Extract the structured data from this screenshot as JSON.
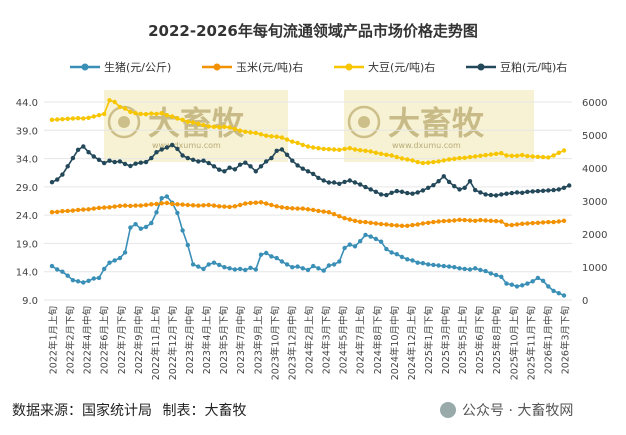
{
  "chart_data": {
    "type": "line",
    "title": "2022-2026年每旬流通领域产品市场价格走势图",
    "watermark": "大畜牧",
    "watermark_sub": "www.dxumu.com",
    "left_axis": {
      "ylim": [
        9.0,
        44.0
      ],
      "ticks": [
        "9.0",
        "14.0",
        "19.0",
        "24.0",
        "29.0",
        "34.0",
        "39.0",
        "44.0"
      ]
    },
    "right_axis": {
      "ylim": [
        0,
        6000
      ],
      "ticks": [
        "0",
        "1000",
        "2000",
        "3000",
        "4000",
        "5000",
        "6000"
      ]
    },
    "x_tick_labels": [
      "2022年1月上旬",
      "2022年2月下旬",
      "2022年4月中旬",
      "2022年6月上旬",
      "2022年7月下旬",
      "2022年9月中旬",
      "2022年11月上旬",
      "2022年12月下旬",
      "2023年2月中旬",
      "2023年4月上旬",
      "2023年5月下旬",
      "2023年7月中旬",
      "2023年9月上旬",
      "2023年10月下旬",
      "2023年12月中旬",
      "2024年2月上旬",
      "2024年3月下旬",
      "2024年5月中旬",
      "2024年7月上旬",
      "2024年8月下旬",
      "2024年10月中旬",
      "2024年12月上旬",
      "2025年1月下旬",
      "2025年3月中旬",
      "2025年5月上旬",
      "2025年6月下旬",
      "2025年8月中旬",
      "2025年10月上旬",
      "2025年11月下旬",
      "2026年1月中旬",
      "2026年3月下旬"
    ],
    "grid": true,
    "legend_position": "top",
    "series": [
      {
        "name": "生猪(元/公斤)",
        "axis": "left",
        "color": "#3a8fb7",
        "values": [
          15.0,
          14.4,
          14.0,
          13.3,
          12.5,
          12.3,
          12.1,
          12.4,
          12.8,
          12.9,
          14.5,
          15.6,
          16.0,
          16.4,
          17.4,
          21.8,
          22.4,
          21.6,
          21.9,
          22.6,
          24.5,
          27.0,
          27.3,
          26.2,
          24.4,
          21.3,
          18.7,
          15.3,
          14.9,
          14.5,
          15.3,
          15.6,
          15.2,
          14.8,
          14.6,
          14.4,
          14.5,
          14.3,
          14.7,
          14.4,
          17.0,
          17.3,
          16.7,
          16.4,
          15.8,
          15.3,
          14.8,
          14.9,
          14.6,
          14.3,
          15.0,
          14.6,
          14.2,
          15.1,
          15.3,
          15.8,
          18.2,
          18.8,
          18.5,
          19.4,
          20.5,
          20.2,
          19.8,
          19.3,
          18.0,
          17.4,
          17.1,
          16.6,
          16.2,
          16.0,
          15.6,
          15.5,
          15.3,
          15.2,
          15.1,
          15.0,
          14.9,
          14.8,
          14.6,
          14.5,
          14.4,
          14.6,
          14.3,
          14.1,
          13.7,
          13.4,
          13.1,
          11.9,
          11.7,
          11.4,
          11.6,
          11.9,
          12.3,
          12.9,
          12.4,
          11.4,
          10.6,
          10.2,
          9.8
        ]
      },
      {
        "name": "玉米(元/吨)右",
        "axis": "right",
        "color": "#f39200",
        "values": [
          2660,
          2670,
          2690,
          2700,
          2710,
          2730,
          2740,
          2750,
          2770,
          2790,
          2800,
          2810,
          2830,
          2850,
          2860,
          2850,
          2860,
          2860,
          2880,
          2900,
          2910,
          2930,
          2940,
          2910,
          2900,
          2890,
          2880,
          2870,
          2860,
          2870,
          2880,
          2860,
          2840,
          2830,
          2820,
          2840,
          2880,
          2920,
          2940,
          2950,
          2960,
          2920,
          2880,
          2840,
          2810,
          2790,
          2780,
          2770,
          2770,
          2750,
          2730,
          2700,
          2680,
          2660,
          2600,
          2540,
          2480,
          2440,
          2400,
          2370,
          2360,
          2340,
          2320,
          2300,
          2290,
          2270,
          2260,
          2250,
          2250,
          2270,
          2290,
          2320,
          2340,
          2360,
          2380,
          2390,
          2400,
          2410,
          2430,
          2420,
          2410,
          2400,
          2420,
          2410,
          2400,
          2390,
          2380,
          2280,
          2270,
          2290,
          2310,
          2320,
          2330,
          2340,
          2350,
          2360,
          2360,
          2380,
          2400
        ]
      },
      {
        "name": "大豆(元/吨)右",
        "axis": "right",
        "color": "#f7c600",
        "values": [
          5460,
          5470,
          5480,
          5490,
          5500,
          5510,
          5500,
          5520,
          5560,
          5600,
          5640,
          6050,
          6000,
          5850,
          5800,
          5700,
          5660,
          5640,
          5630,
          5650,
          5640,
          5660,
          5600,
          5560,
          5500,
          5460,
          5400,
          5380,
          5340,
          5300,
          5260,
          5250,
          5240,
          5250,
          5230,
          5180,
          5130,
          5100,
          5080,
          5060,
          5020,
          4980,
          4960,
          4950,
          4920,
          4860,
          4800,
          4760,
          4700,
          4650,
          4620,
          4600,
          4580,
          4570,
          4560,
          4550,
          4580,
          4600,
          4560,
          4540,
          4520,
          4500,
          4460,
          4430,
          4400,
          4380,
          4330,
          4290,
          4260,
          4230,
          4180,
          4150,
          4160,
          4180,
          4200,
          4230,
          4260,
          4280,
          4300,
          4310,
          4330,
          4350,
          4370,
          4390,
          4410,
          4430,
          4450,
          4380,
          4370,
          4370,
          4390,
          4360,
          4350,
          4340,
          4330,
          4320,
          4380,
          4460,
          4530
        ]
      },
      {
        "name": "豆粕(元/吨)右",
        "axis": "right",
        "color": "#23485a",
        "values": [
          3570,
          3650,
          3800,
          4050,
          4300,
          4550,
          4650,
          4480,
          4350,
          4250,
          4150,
          4220,
          4180,
          4200,
          4120,
          4060,
          4130,
          4160,
          4180,
          4300,
          4480,
          4560,
          4620,
          4700,
          4580,
          4380,
          4300,
          4250,
          4200,
          4220,
          4150,
          4050,
          3950,
          3900,
          4010,
          3960,
          4100,
          4160,
          4050,
          3900,
          4050,
          4200,
          4300,
          4520,
          4560,
          4400,
          4220,
          4080,
          3980,
          3900,
          3820,
          3700,
          3620,
          3560,
          3560,
          3520,
          3580,
          3620,
          3560,
          3500,
          3420,
          3350,
          3280,
          3200,
          3180,
          3250,
          3300,
          3280,
          3240,
          3220,
          3260,
          3320,
          3400,
          3480,
          3600,
          3750,
          3580,
          3450,
          3350,
          3400,
          3600,
          3330,
          3260,
          3200,
          3180,
          3170,
          3200,
          3220,
          3240,
          3260,
          3250,
          3280,
          3290,
          3300,
          3310,
          3320,
          3330,
          3350,
          3400,
          3470
        ]
      }
    ]
  },
  "footer": {
    "source": "数据来源：国家统计局",
    "maker": "制表：大畜牧",
    "wechat": "公众号 · 大畜牧网"
  }
}
